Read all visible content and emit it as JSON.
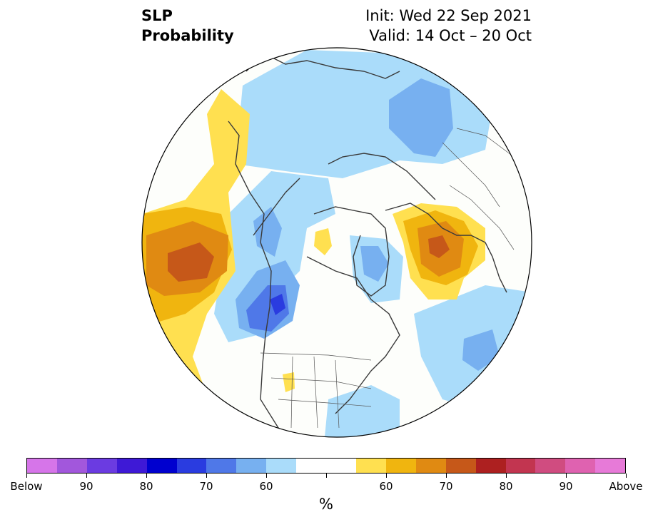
{
  "title": {
    "left_line1": "SLP",
    "left_line2": "Probability",
    "init": "Init: Wed 22 Sep 2021",
    "valid": "Valid: 14 Oct – 20 Oct"
  },
  "map": {
    "projection": "north polar stereographic",
    "features": {
      "below_normal_regions": [
        "Alaska / Bering Strait",
        "Western Canada",
        "Siberia",
        "Greenland",
        "North Atlantic",
        "Eastern Canada / US East Coast"
      ],
      "above_normal_regions": [
        "North Pacific",
        "Eastern Europe / Scandinavia",
        "Central Arctic",
        "US Southwest"
      ]
    }
  },
  "colorbar": {
    "colors": [
      "#d675e9",
      "#a257dc",
      "#6b3be1",
      "#3e19d6",
      "#0000cf",
      "#2a3ce0",
      "#4f78e8",
      "#77b0f0",
      "#aadcfa",
      "#ffffff",
      "#ffffff",
      "#ffe050",
      "#f0b50f",
      "#e08a12",
      "#c65819",
      "#ad2020",
      "#c23550",
      "#d04c80",
      "#df62b0",
      "#e77ad8"
    ],
    "tick_labels": [
      "Below",
      "90",
      "80",
      "70",
      "60",
      "60",
      "70",
      "80",
      "90",
      "Above"
    ],
    "unit": "%"
  }
}
